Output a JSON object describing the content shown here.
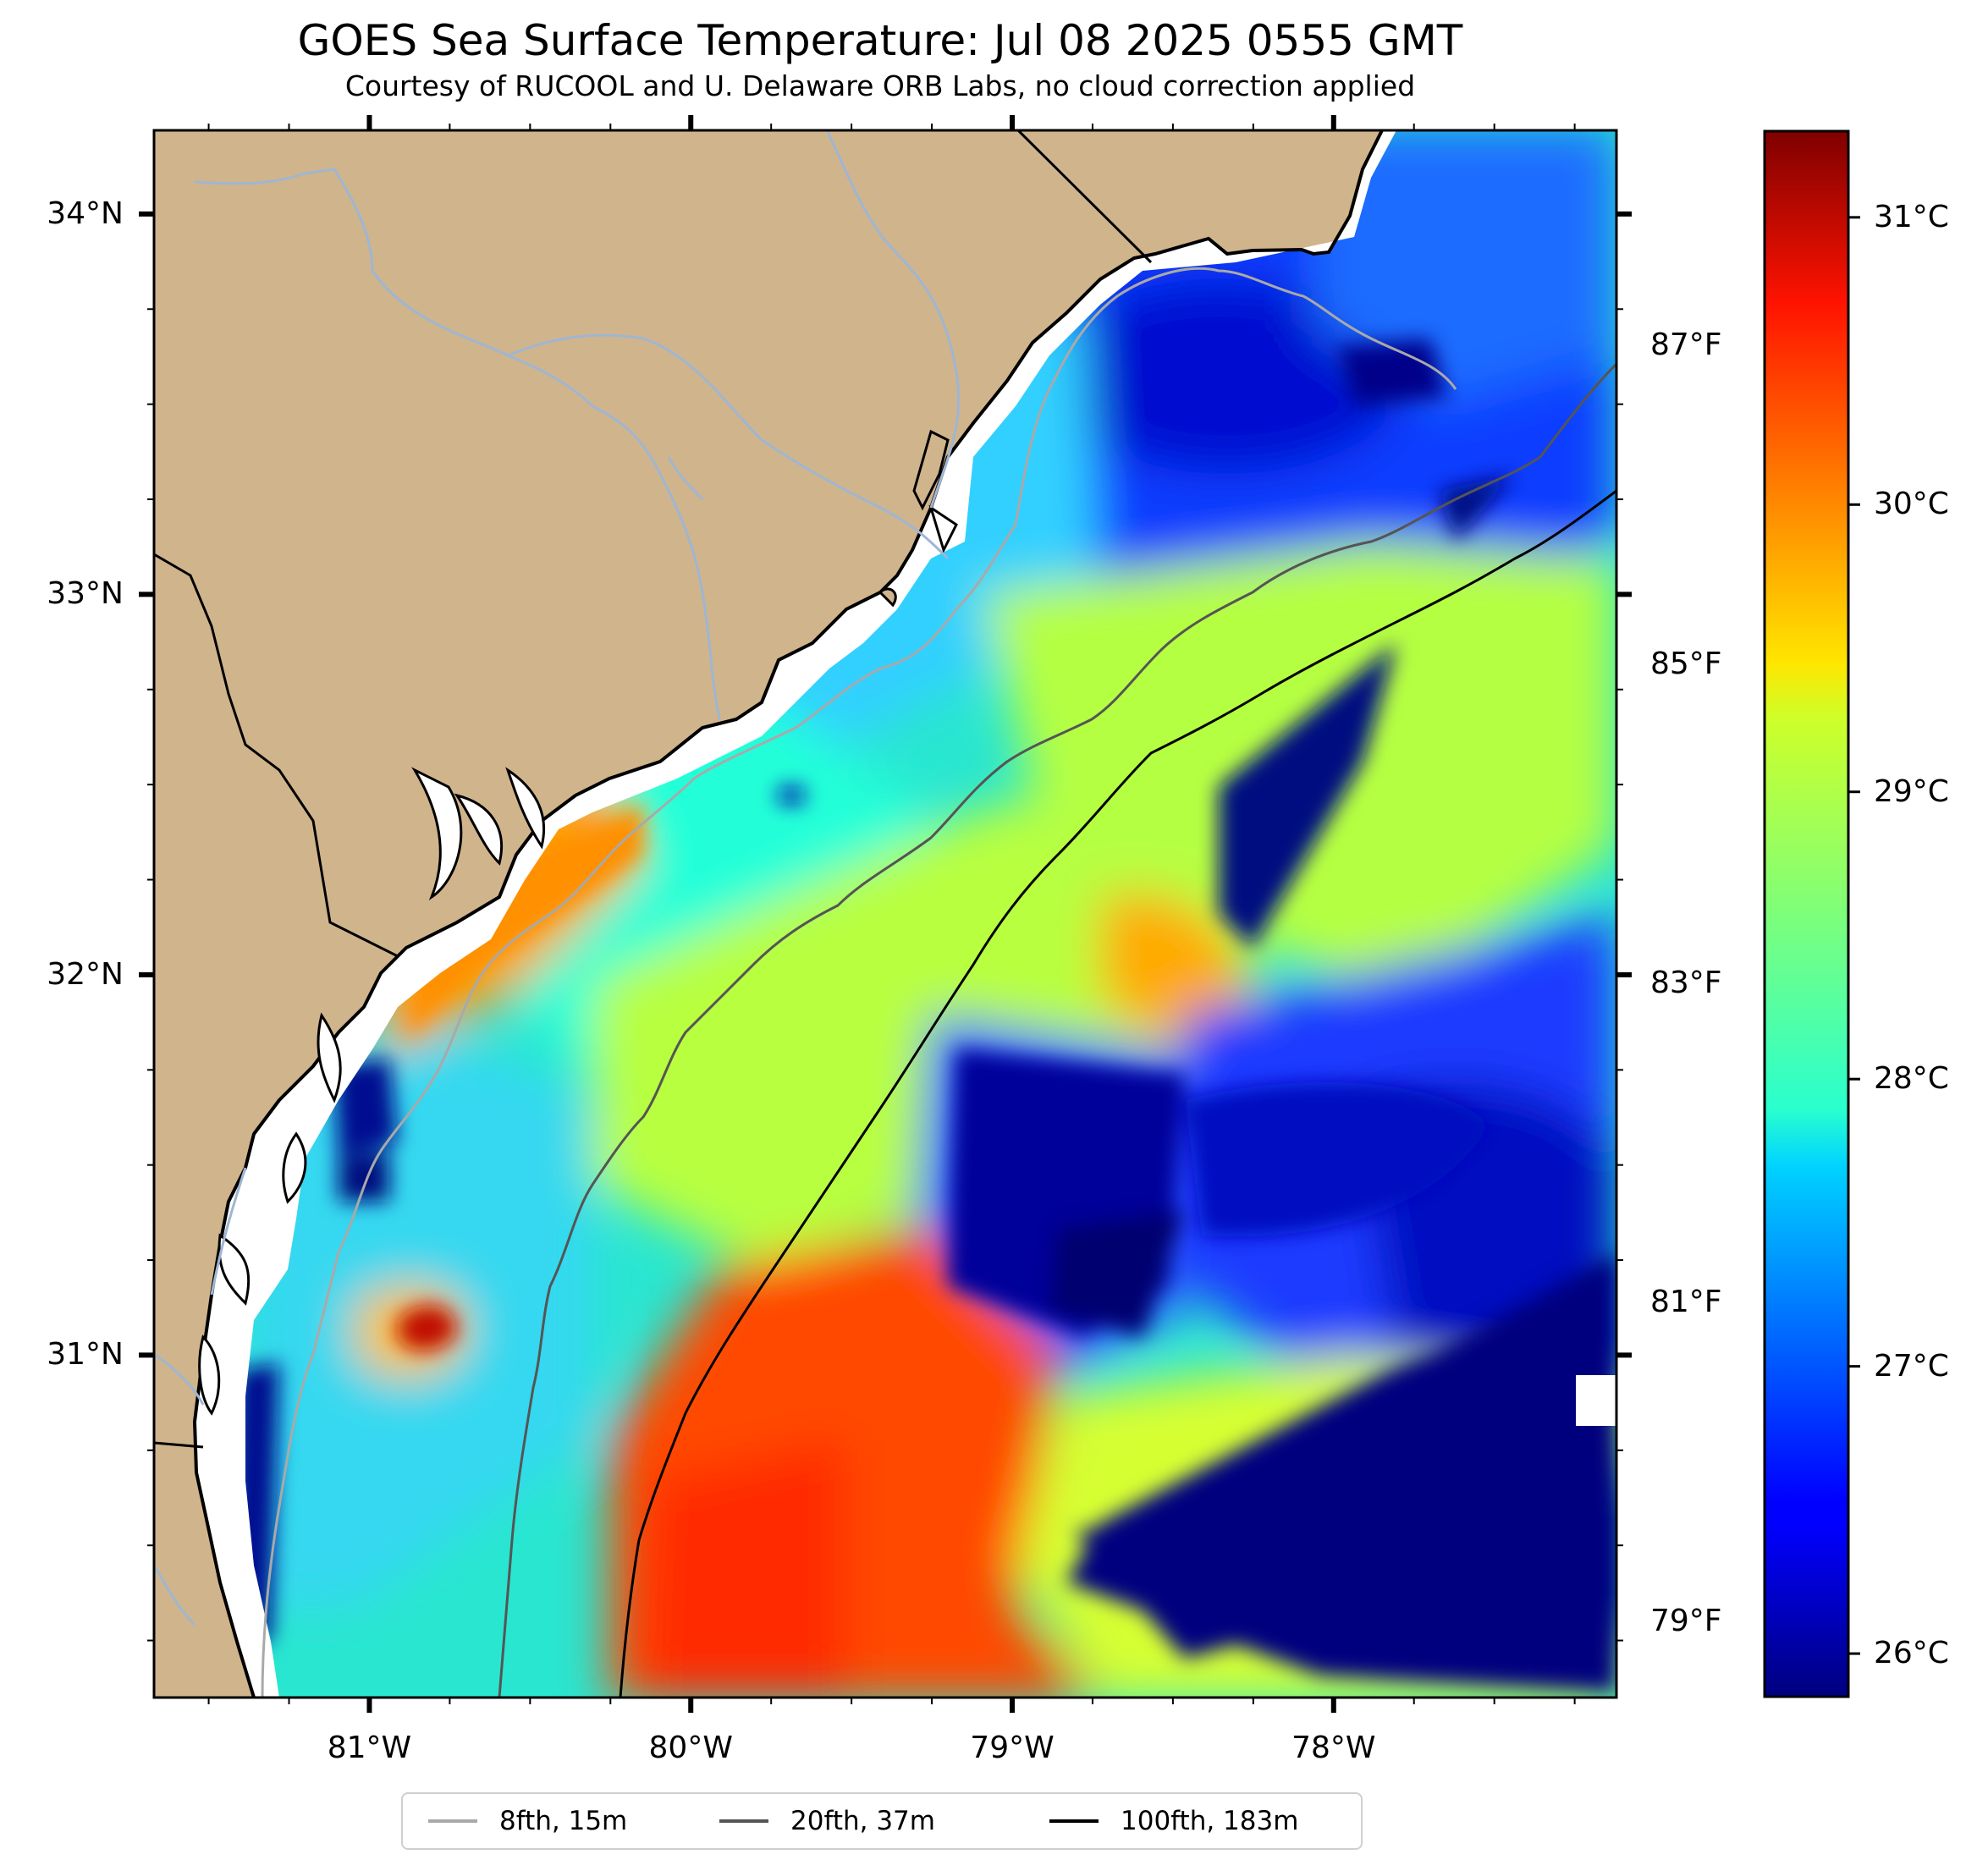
{
  "title": "GOES Sea Surface Temperature: Jul 08 2025 0555 GMT",
  "subtitle": "Courtesy of RUCOOL and U. Delaware ORB Labs, no cloud correction applied",
  "colors": {
    "land": "#d0b48c",
    "coast_line": "#000000",
    "river": "#9fb6d2",
    "isobath_8fth": "#a9a9a9",
    "isobath_20fth": "#555555",
    "isobath_100fth": "#000000"
  },
  "map": {
    "lon_range": [
      -81.67,
      -77.12
    ],
    "lat_range": [
      30.1,
      34.22
    ],
    "lon_ticks": [
      {
        "value": -81,
        "label": "81°W"
      },
      {
        "value": -80,
        "label": "80°W"
      },
      {
        "value": -79,
        "label": "79°W"
      },
      {
        "value": -78,
        "label": "78°W"
      }
    ],
    "lat_ticks": [
      {
        "value": 34,
        "label": "34°N"
      },
      {
        "value": 33,
        "label": "33°N"
      },
      {
        "value": 32,
        "label": "32°N"
      },
      {
        "value": 31,
        "label": "31°N"
      }
    ]
  },
  "colorbar": {
    "colormap": "jet",
    "c_range": [
      25.85,
      31.3
    ],
    "celsius_ticks": [
      {
        "value": 26,
        "label": "26°C"
      },
      {
        "value": 27,
        "label": "27°C"
      },
      {
        "value": 28,
        "label": "28°C"
      },
      {
        "value": 29,
        "label": "29°C"
      },
      {
        "value": 30,
        "label": "30°C"
      },
      {
        "value": 31,
        "label": "31°C"
      }
    ],
    "fahrenheit_ticks": [
      {
        "value": 79,
        "label": "79°F"
      },
      {
        "value": 81,
        "label": "81°F"
      },
      {
        "value": 83,
        "label": "83°F"
      },
      {
        "value": 85,
        "label": "85°F"
      },
      {
        "value": 87,
        "label": "87°F"
      }
    ]
  },
  "legend": {
    "items": [
      {
        "label": "8fth, 15m",
        "color": "#a9a9a9"
      },
      {
        "label": "20fth, 37m",
        "color": "#555555"
      },
      {
        "label": "100fth, 183m",
        "color": "#000000"
      }
    ]
  }
}
